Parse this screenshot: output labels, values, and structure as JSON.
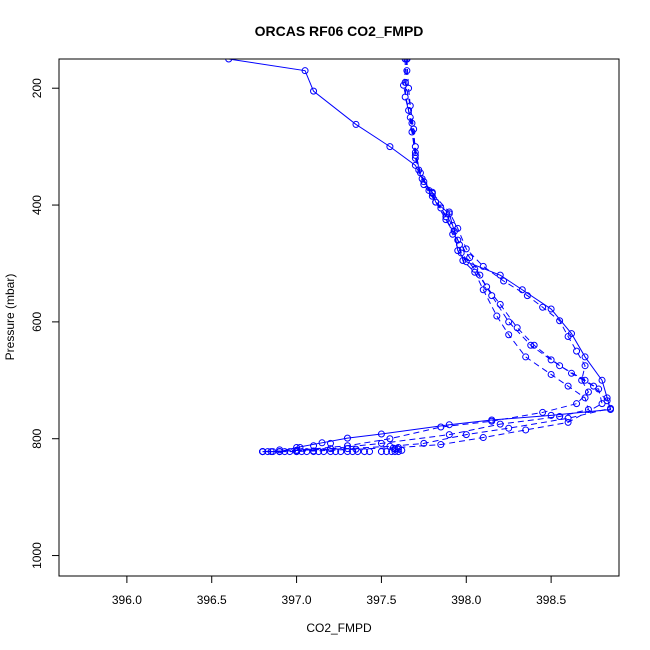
{
  "chart_data": {
    "type": "line",
    "title": "ORCAS RF06 CO2_FMPD",
    "xlabel": "CO2_FMPD",
    "ylabel": "Pressure (mbar)",
    "xlim": [
      395.6,
      398.9
    ],
    "ylim": [
      1035,
      150
    ],
    "x_ticks": [
      {
        "value": 396.0,
        "label": "396.0"
      },
      {
        "value": 396.5,
        "label": "396.5"
      },
      {
        "value": 397.0,
        "label": "397.0"
      },
      {
        "value": 397.5,
        "label": "397.5"
      },
      {
        "value": 398.0,
        "label": "398.0"
      },
      {
        "value": 398.5,
        "label": "398.5"
      }
    ],
    "y_ticks": [
      {
        "value": 200,
        "label": "200"
      },
      {
        "value": 400,
        "label": "400"
      },
      {
        "value": 600,
        "label": "600"
      },
      {
        "value": 800,
        "label": "800"
      },
      {
        "value": 1000,
        "label": "1000"
      }
    ],
    "grid": false,
    "color": "#0000ff",
    "series": [
      {
        "style": "solid",
        "points": [
          [
            396.6,
            150
          ],
          [
            397.05,
            170
          ],
          [
            397.1,
            205
          ],
          [
            397.35,
            262
          ],
          [
            397.55,
            300
          ],
          [
            397.7,
            332
          ],
          [
            397.75,
            360
          ],
          [
            397.8,
            378
          ],
          [
            397.82,
            395
          ],
          [
            397.9,
            415
          ],
          [
            397.93,
            445
          ],
          [
            397.95,
            478
          ],
          [
            398.0,
            497
          ],
          [
            398.2,
            520
          ],
          [
            398.33,
            545
          ],
          [
            398.5,
            578
          ],
          [
            398.62,
            620
          ],
          [
            398.7,
            660
          ],
          [
            398.8,
            700
          ],
          [
            398.83,
            730
          ],
          [
            398.85,
            750
          ],
          [
            398.5,
            760
          ],
          [
            398.15,
            768
          ],
          [
            397.9,
            776
          ],
          [
            397.5,
            792
          ],
          [
            397.3,
            799
          ],
          [
            397.15,
            807
          ],
          [
            397.0,
            815
          ],
          [
            396.9,
            822
          ],
          [
            396.8,
            822
          ]
        ]
      },
      {
        "style": "dashed",
        "points": [
          [
            397.65,
            150
          ],
          [
            397.65,
            170
          ],
          [
            397.64,
            215
          ],
          [
            397.67,
            250
          ],
          [
            397.7,
            300
          ],
          [
            397.72,
            340
          ],
          [
            397.78,
            375
          ],
          [
            397.85,
            405
          ],
          [
            397.92,
            435
          ],
          [
            397.96,
            468
          ],
          [
            397.98,
            495
          ],
          [
            398.05,
            515
          ],
          [
            398.1,
            545
          ],
          [
            398.18,
            590
          ],
          [
            398.25,
            622
          ],
          [
            398.35,
            660
          ],
          [
            398.5,
            690
          ],
          [
            398.6,
            710
          ],
          [
            398.7,
            730
          ],
          [
            398.72,
            750
          ],
          [
            398.55,
            762
          ],
          [
            398.2,
            775
          ],
          [
            397.9,
            793
          ],
          [
            397.5,
            808
          ],
          [
            397.2,
            817
          ],
          [
            397.0,
            822
          ],
          [
            396.8,
            822
          ]
        ]
      },
      {
        "style": "dashed",
        "points": [
          [
            397.65,
            150
          ],
          [
            397.63,
            195
          ],
          [
            397.66,
            238
          ],
          [
            397.68,
            275
          ],
          [
            397.7,
            315
          ],
          [
            397.75,
            365
          ],
          [
            397.82,
            395
          ],
          [
            397.88,
            425
          ],
          [
            397.95,
            460
          ],
          [
            398.02,
            490
          ],
          [
            398.08,
            520
          ],
          [
            398.15,
            555
          ],
          [
            398.25,
            600
          ],
          [
            398.38,
            640
          ],
          [
            398.5,
            665
          ],
          [
            398.62,
            688
          ],
          [
            398.75,
            710
          ],
          [
            398.83,
            735
          ],
          [
            398.85,
            748
          ],
          [
            398.6,
            765
          ],
          [
            398.25,
            782
          ],
          [
            398.0,
            793
          ],
          [
            397.75,
            808
          ],
          [
            397.55,
            813
          ],
          [
            397.3,
            817
          ],
          [
            397.0,
            820
          ],
          [
            396.85,
            822
          ]
        ]
      },
      {
        "style": "dashed",
        "points": [
          [
            397.64,
            150
          ],
          [
            397.64,
            190
          ],
          [
            397.67,
            230
          ],
          [
            397.69,
            270
          ],
          [
            397.7,
            310
          ],
          [
            397.73,
            345
          ],
          [
            397.8,
            385
          ],
          [
            397.88,
            420
          ],
          [
            397.92,
            450
          ],
          [
            397.97,
            482
          ],
          [
            398.05,
            510
          ],
          [
            398.12,
            540
          ],
          [
            398.2,
            570
          ],
          [
            398.3,
            610
          ],
          [
            398.4,
            640
          ],
          [
            398.55,
            675
          ],
          [
            398.7,
            700
          ],
          [
            398.78,
            715
          ],
          [
            398.8,
            740
          ],
          [
            398.6,
            772
          ],
          [
            398.35,
            785
          ],
          [
            398.1,
            798
          ],
          [
            397.85,
            810
          ],
          [
            397.6,
            815
          ],
          [
            397.35,
            818
          ],
          [
            397.1,
            821
          ],
          [
            396.9,
            822
          ]
        ]
      },
      {
        "style": "dashed",
        "points": [
          [
            397.65,
            150
          ],
          [
            397.66,
            200
          ],
          [
            397.68,
            260
          ],
          [
            397.7,
            320
          ],
          [
            397.74,
            355
          ],
          [
            397.8,
            380
          ],
          [
            397.9,
            412
          ],
          [
            397.95,
            440
          ],
          [
            398.0,
            475
          ],
          [
            398.1,
            505
          ],
          [
            398.22,
            530
          ],
          [
            398.36,
            555
          ],
          [
            398.45,
            575
          ],
          [
            398.55,
            598
          ],
          [
            398.6,
            625
          ],
          [
            398.65,
            650
          ],
          [
            398.7,
            675
          ],
          [
            398.68,
            700
          ],
          [
            398.72,
            720
          ],
          [
            398.65,
            740
          ],
          [
            398.45,
            755
          ],
          [
            398.15,
            770
          ],
          [
            397.85,
            780
          ],
          [
            397.55,
            800
          ],
          [
            397.3,
            812
          ],
          [
            397.0,
            820
          ],
          [
            396.8,
            822
          ]
        ]
      },
      {
        "style": "points",
        "points": [
          [
            396.8,
            822
          ],
          [
            396.83,
            822
          ],
          [
            396.86,
            822
          ],
          [
            396.9,
            822
          ],
          [
            396.93,
            822
          ],
          [
            396.96,
            822
          ],
          [
            397.0,
            822
          ],
          [
            397.03,
            822
          ],
          [
            397.06,
            822
          ],
          [
            397.1,
            822
          ],
          [
            397.13,
            822
          ],
          [
            397.16,
            822
          ],
          [
            397.2,
            822
          ],
          [
            397.23,
            822
          ],
          [
            397.26,
            822
          ],
          [
            397.3,
            822
          ],
          [
            397.33,
            822
          ],
          [
            397.36,
            822
          ],
          [
            397.4,
            822
          ],
          [
            397.43,
            822
          ],
          [
            397.5,
            822
          ],
          [
            397.53,
            822
          ],
          [
            397.56,
            822
          ],
          [
            397.58,
            822
          ],
          [
            397.6,
            822
          ],
          [
            397.58,
            818
          ],
          [
            397.6,
            818
          ],
          [
            397.57,
            816
          ],
          [
            397.62,
            820
          ],
          [
            396.9,
            819
          ],
          [
            397.02,
            815
          ],
          [
            397.1,
            812
          ],
          [
            397.2,
            808
          ]
        ]
      }
    ]
  }
}
